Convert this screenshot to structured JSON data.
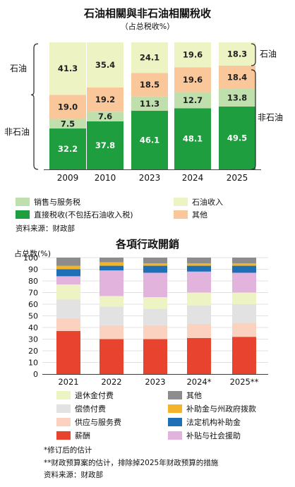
{
  "chart_data": [
    {
      "type": "bar",
      "stacked": true,
      "title": "石油相關與非石油相關稅收",
      "subtitle": "（占总税收%）",
      "categories": [
        "2009",
        "2010",
        "2023",
        "2024",
        "2025"
      ],
      "series": [
        {
          "name": "直接税收(不包括石油收入税)",
          "color": "#1e9e3e",
          "values": [
            32.2,
            37.8,
            46.1,
            48.1,
            49.5
          ]
        },
        {
          "name": "销售与服务税",
          "color": "#bfe0ad",
          "values": [
            7.5,
            7.6,
            11.3,
            12.7,
            13.8
          ]
        },
        {
          "name": "其他",
          "color": "#f9c79a",
          "values": [
            19.0,
            19.2,
            18.5,
            19.6,
            18.4
          ]
        },
        {
          "name": "石油收入",
          "color": "#eef3c4",
          "values": [
            41.3,
            35.4,
            24.1,
            19.6,
            18.3
          ]
        }
      ],
      "group_labels": {
        "left_oil": "石油",
        "left_nonoil": "非石油",
        "right_oil": "石油",
        "right_nonoil": "非石油"
      },
      "legend_placement": "bottom",
      "source": "资料来源：财政部"
    },
    {
      "type": "bar",
      "stacked": true,
      "title": "各項行政開銷",
      "ylabel": "占总数(%)",
      "ylim": [
        0,
        100
      ],
      "yticks": [
        0,
        10,
        20,
        30,
        40,
        50,
        60,
        70,
        80,
        90,
        100
      ],
      "categories": [
        "2021",
        "2022",
        "2023",
        "2024*",
        "2025**"
      ],
      "series": [
        {
          "name": "薪酬",
          "color": "#e8432e",
          "values": [
            37,
            30,
            30,
            31,
            32
          ]
        },
        {
          "name": "供应与服务费",
          "color": "#fbd2c0",
          "values": [
            11,
            12,
            12,
            12,
            12
          ]
        },
        {
          "name": "偿债付费",
          "color": "#e2e2e2",
          "values": [
            16,
            16,
            14,
            16,
            16
          ]
        },
        {
          "name": "退休金付费",
          "color": "#eef3c4",
          "values": [
            13,
            9,
            10,
            11,
            10
          ]
        },
        {
          "name": "补贴与社会援助",
          "color": "#e2b3dd",
          "values": [
            7,
            22,
            21,
            18,
            17
          ]
        },
        {
          "name": "法定机构补助金",
          "color": "#1f6fb7",
          "values": [
            6,
            4,
            6,
            5,
            6
          ]
        },
        {
          "name": "补助金与州政府拨款",
          "color": "#f3b32b",
          "values": [
            3,
            3,
            2,
            2,
            2
          ]
        },
        {
          "name": "其他",
          "color": "#8c8c8c",
          "values": [
            7,
            4,
            5,
            5,
            5
          ]
        }
      ],
      "legend_placement": "bottom",
      "notes": [
        "*修订后的估计",
        "**财政预算案的估计，排除掉2025年财政预算的措施"
      ],
      "source": "资料来源：财政部"
    }
  ]
}
